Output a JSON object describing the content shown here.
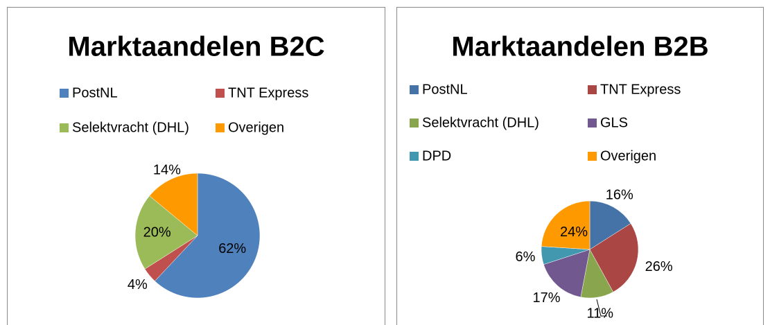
{
  "chart_data": [
    {
      "type": "pie",
      "title": "Marktaandelen B2C",
      "categories": [
        "PostNL",
        "TNT Express",
        "Selektvracht (DHL)",
        "Overigen"
      ],
      "values": [
        62,
        4,
        20,
        14
      ],
      "value_labels": [
        "62%",
        "4%",
        "20%",
        "14%"
      ],
      "colors": [
        "#4f81bd",
        "#c0504d",
        "#9bbb59",
        "#ff9900"
      ]
    },
    {
      "type": "pie",
      "title": "Marktaandelen B2B",
      "categories": [
        "PostNL",
        "TNT Express",
        "Selektvracht (DHL)",
        "GLS",
        "DPD",
        "Overigen"
      ],
      "values": [
        16,
        26,
        11,
        17,
        6,
        24
      ],
      "value_labels": [
        "16%",
        "26%",
        "11%",
        "17%",
        "6%",
        "24%"
      ],
      "colors": [
        "#4572a7",
        "#aa4643",
        "#89a54e",
        "#71588f",
        "#4198af",
        "#ff9900"
      ]
    }
  ]
}
